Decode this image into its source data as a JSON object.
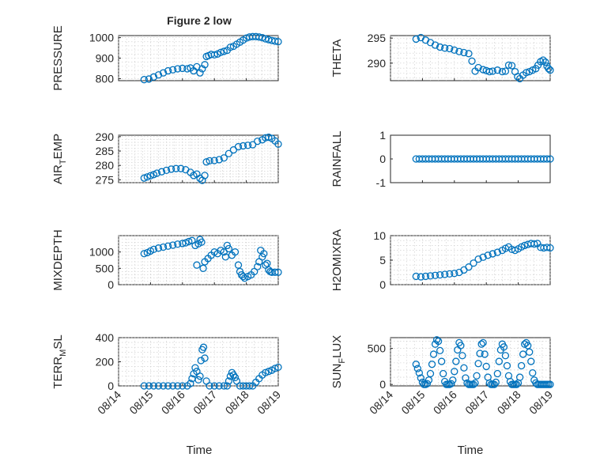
{
  "figure": {
    "title": "Figure 2 low",
    "xlabel": "Time",
    "marker_color": "#0072BD"
  },
  "chart_data": [
    {
      "type": "scatter",
      "title": "Figure 2 low",
      "ylabel": "PRESSURE",
      "xlim": [
        "08/14",
        "08/19"
      ],
      "ylim": [
        790,
        1010
      ],
      "yticks": [
        800,
        900,
        1000
      ],
      "xticks": [
        "08/14",
        "08/15",
        "08/16",
        "08/17",
        "08/18",
        "08/19"
      ],
      "grid": true,
      "x": [
        0.8,
        0.95,
        1.1,
        1.25,
        1.4,
        1.55,
        1.7,
        1.85,
        2.0,
        2.15,
        2.25,
        2.35,
        2.45,
        2.55,
        2.62,
        2.7,
        2.75,
        2.82,
        2.9,
        3.0,
        3.1,
        3.2,
        3.3,
        3.4,
        3.5,
        3.6,
        3.7,
        3.8,
        3.9,
        4.0,
        4.1,
        4.2,
        4.3,
        4.4,
        4.5,
        4.6,
        4.7,
        4.8,
        4.9,
        5.0
      ],
      "y": [
        795,
        798,
        808,
        818,
        828,
        838,
        843,
        848,
        850,
        848,
        852,
        838,
        858,
        828,
        848,
        868,
        908,
        912,
        918,
        916,
        920,
        928,
        933,
        938,
        953,
        958,
        968,
        978,
        988,
        998,
        1003,
        1005,
        1005,
        1003,
        1000,
        994,
        990,
        986,
        983,
        980
      ]
    },
    {
      "type": "scatter",
      "ylabel": "THETA",
      "xlim": [
        "08/14",
        "08/19"
      ],
      "ylim": [
        286.5,
        295.5
      ],
      "yticks": [
        290,
        295
      ],
      "xticks": [
        "08/14",
        "08/15",
        "08/16",
        "08/17",
        "08/18",
        "08/19"
      ],
      "grid": true,
      "x": [
        0.8,
        0.95,
        1.1,
        1.25,
        1.4,
        1.55,
        1.7,
        1.85,
        2.0,
        2.15,
        2.3,
        2.45,
        2.55,
        2.65,
        2.75,
        2.9,
        3.0,
        3.1,
        3.2,
        3.35,
        3.5,
        3.6,
        3.7,
        3.8,
        3.9,
        3.98,
        4.05,
        4.15,
        4.25,
        4.35,
        4.45,
        4.55,
        4.62,
        4.7,
        4.78,
        4.85,
        4.9,
        4.95,
        5.0
      ],
      "y": [
        294.8,
        295.1,
        294.6,
        294.1,
        293.6,
        293.2,
        293.0,
        292.9,
        292.6,
        292.3,
        292.1,
        291.9,
        290.4,
        288.4,
        289.1,
        288.7,
        288.5,
        288.3,
        288.4,
        288.6,
        288.3,
        288.4,
        289.6,
        289.5,
        288.3,
        287.3,
        286.9,
        287.6,
        288.1,
        288.3,
        288.6,
        288.9,
        289.6,
        290.3,
        290.6,
        290.2,
        289.4,
        288.9,
        288.6
      ]
    },
    {
      "type": "scatter",
      "ylabel": "AIR_TEMP",
      "xlim": [
        "08/14",
        "08/19"
      ],
      "ylim": [
        274,
        290.5
      ],
      "yticks": [
        275,
        280,
        285,
        290
      ],
      "xticks": [
        "08/14",
        "08/15",
        "08/16",
        "08/17",
        "08/18",
        "08/19"
      ],
      "grid": true,
      "x": [
        0.8,
        0.9,
        1.0,
        1.1,
        1.2,
        1.35,
        1.5,
        1.65,
        1.8,
        1.95,
        2.1,
        2.25,
        2.35,
        2.45,
        2.55,
        2.62,
        2.7,
        2.75,
        2.85,
        3.0,
        3.15,
        3.3,
        3.45,
        3.6,
        3.75,
        3.9,
        4.05,
        4.2,
        4.35,
        4.5,
        4.6,
        4.7,
        4.8,
        4.9,
        5.0
      ],
      "y": [
        275.6,
        276.0,
        276.4,
        276.8,
        277.3,
        277.8,
        278.3,
        278.7,
        278.9,
        278.9,
        278.5,
        277.6,
        276.5,
        277.0,
        275.5,
        274.8,
        276.5,
        281.2,
        281.6,
        281.7,
        282.0,
        282.6,
        284.1,
        285.4,
        286.5,
        286.8,
        287.0,
        287.2,
        288.4,
        288.9,
        289.6,
        289.8,
        289.4,
        288.5,
        287.4
      ]
    },
    {
      "type": "scatter",
      "ylabel": "RAINFALL",
      "xlim": [
        "08/14",
        "08/19"
      ],
      "ylim": [
        -1,
        1
      ],
      "yticks": [
        -1,
        0,
        1
      ],
      "xticks": [
        "08/14",
        "08/15",
        "08/16",
        "08/17",
        "08/18",
        "08/19"
      ],
      "grid": false,
      "x": [
        0.8,
        0.9,
        1.0,
        1.1,
        1.2,
        1.3,
        1.4,
        1.5,
        1.6,
        1.7,
        1.8,
        1.9,
        2.0,
        2.1,
        2.2,
        2.3,
        2.4,
        2.5,
        2.6,
        2.7,
        2.8,
        2.9,
        3.0,
        3.1,
        3.2,
        3.3,
        3.4,
        3.5,
        3.6,
        3.7,
        3.8,
        3.9,
        4.0,
        4.1,
        4.2,
        4.3,
        4.4,
        4.5,
        4.6,
        4.7,
        4.8,
        4.9,
        5.0
      ],
      "y": [
        0,
        0,
        0,
        0,
        0,
        0,
        0,
        0,
        0,
        0,
        0,
        0,
        0,
        0,
        0,
        0,
        0,
        0,
        0,
        0,
        0,
        0,
        0,
        0,
        0,
        0,
        0,
        0,
        0,
        0,
        0,
        0,
        0,
        0,
        0,
        0,
        0,
        0,
        0,
        0,
        0,
        0,
        0
      ]
    },
    {
      "type": "scatter",
      "ylabel": "MIXDEPTH",
      "xlim": [
        "08/14",
        "08/19"
      ],
      "ylim": [
        0,
        1500
      ],
      "yticks": [
        0,
        500,
        1000
      ],
      "xticks": [
        "08/14",
        "08/15",
        "08/16",
        "08/17",
        "08/18",
        "08/19"
      ],
      "grid": true,
      "x": [
        0.8,
        0.9,
        1.0,
        1.1,
        1.25,
        1.4,
        1.55,
        1.7,
        1.85,
        2.0,
        2.1,
        2.2,
        2.3,
        2.4,
        2.45,
        2.5,
        2.55,
        2.6,
        2.65,
        2.7,
        2.8,
        2.9,
        3.0,
        3.1,
        3.2,
        3.3,
        3.35,
        3.4,
        3.45,
        3.55,
        3.65,
        3.75,
        3.8,
        3.85,
        3.9,
        3.95,
        4.05,
        4.15,
        4.25,
        4.35,
        4.4,
        4.45,
        4.5,
        4.55,
        4.6,
        4.65,
        4.7,
        4.75,
        4.8,
        4.9,
        5.0
      ],
      "y": [
        950,
        980,
        1030,
        1080,
        1120,
        1150,
        1180,
        1210,
        1240,
        1260,
        1280,
        1320,
        1350,
        1200,
        600,
        1250,
        1380,
        1300,
        500,
        700,
        800,
        900,
        1000,
        950,
        1050,
        1000,
        850,
        1200,
        1100,
        900,
        1000,
        600,
        400,
        300,
        250,
        200,
        250,
        300,
        400,
        550,
        700,
        1050,
        850,
        950,
        600,
        650,
        450,
        400,
        380,
        380,
        380
      ]
    },
    {
      "type": "scatter",
      "ylabel": "H2OMIXRA",
      "xlim": [
        "08/14",
        "08/19"
      ],
      "ylim": [
        0,
        10
      ],
      "yticks": [
        0,
        5,
        10
      ],
      "xticks": [
        "08/14",
        "08/15",
        "08/16",
        "08/17",
        "08/18",
        "08/19"
      ],
      "grid": true,
      "x": [
        0.8,
        0.95,
        1.1,
        1.25,
        1.4,
        1.55,
        1.7,
        1.85,
        2.0,
        2.15,
        2.3,
        2.45,
        2.6,
        2.75,
        2.9,
        3.05,
        3.2,
        3.35,
        3.5,
        3.6,
        3.7,
        3.8,
        3.9,
        4.0,
        4.1,
        4.2,
        4.3,
        4.4,
        4.5,
        4.6,
        4.7,
        4.8,
        4.9,
        5.0
      ],
      "y": [
        1.7,
        1.6,
        1.7,
        1.8,
        1.9,
        2.0,
        2.1,
        2.2,
        2.3,
        2.5,
        3.0,
        3.6,
        4.4,
        5.2,
        5.6,
        6.0,
        6.3,
        6.6,
        7.0,
        7.4,
        7.7,
        7.2,
        7.0,
        7.3,
        7.7,
        8.0,
        8.2,
        8.4,
        8.3,
        8.4,
        7.6,
        7.5,
        7.6,
        7.5
      ]
    },
    {
      "type": "scatter",
      "ylabel": "TERR_MSL",
      "xlim": [
        "08/14",
        "08/19"
      ],
      "ylim": [
        0,
        400
      ],
      "yticks": [
        0,
        200,
        400
      ],
      "xticks": [
        "08/14",
        "08/15",
        "08/16",
        "08/17",
        "08/18",
        "08/19"
      ],
      "grid": true,
      "x": [
        0.8,
        0.95,
        1.1,
        1.25,
        1.4,
        1.55,
        1.7,
        1.85,
        2.0,
        2.15,
        2.25,
        2.3,
        2.35,
        2.4,
        2.45,
        2.5,
        2.55,
        2.58,
        2.62,
        2.66,
        2.7,
        2.75,
        2.85,
        3.0,
        3.15,
        3.3,
        3.4,
        3.45,
        3.5,
        3.55,
        3.6,
        3.65,
        3.7,
        3.8,
        3.9,
        4.0,
        4.1,
        4.2,
        4.3,
        4.4,
        4.5,
        4.6,
        4.7,
        4.8,
        4.9,
        5.0
      ],
      "y": [
        0,
        0,
        0,
        0,
        0,
        0,
        0,
        0,
        0,
        0,
        20,
        60,
        100,
        150,
        120,
        50,
        80,
        210,
        300,
        320,
        230,
        40,
        0,
        0,
        0,
        0,
        0,
        40,
        80,
        110,
        90,
        70,
        40,
        0,
        0,
        0,
        0,
        0,
        30,
        60,
        90,
        110,
        120,
        130,
        145,
        155
      ]
    },
    {
      "type": "scatter",
      "ylabel": "SUN_FLUX",
      "xlim": [
        "08/14",
        "08/19"
      ],
      "ylim": [
        -20,
        650
      ],
      "yticks": [
        0,
        500
      ],
      "xticks": [
        "08/14",
        "08/15",
        "08/16",
        "08/17",
        "08/18",
        "08/19"
      ],
      "grid": true,
      "x": [
        0.8,
        0.85,
        0.9,
        0.95,
        1.0,
        1.05,
        1.1,
        1.15,
        1.2,
        1.25,
        1.3,
        1.35,
        1.4,
        1.45,
        1.5,
        1.55,
        1.6,
        1.65,
        1.7,
        1.75,
        1.8,
        1.85,
        1.9,
        1.95,
        2.0,
        2.05,
        2.1,
        2.15,
        2.2,
        2.25,
        2.3,
        2.35,
        2.4,
        2.45,
        2.5,
        2.55,
        2.6,
        2.65,
        2.7,
        2.75,
        2.8,
        2.85,
        2.9,
        2.95,
        3.0,
        3.05,
        3.1,
        3.15,
        3.2,
        3.25,
        3.3,
        3.35,
        3.4,
        3.45,
        3.5,
        3.55,
        3.6,
        3.65,
        3.7,
        3.75,
        3.8,
        3.85,
        3.9,
        3.95,
        4.0,
        4.05,
        4.1,
        4.15,
        4.2,
        4.25,
        4.3,
        4.35,
        4.4,
        4.45,
        4.5,
        4.55,
        4.6,
        4.65,
        4.7,
        4.75,
        4.8,
        4.85,
        4.9,
        4.95,
        5.0
      ],
      "y": [
        280,
        220,
        160,
        90,
        30,
        0,
        0,
        10,
        60,
        150,
        280,
        420,
        560,
        620,
        600,
        470,
        320,
        150,
        40,
        0,
        0,
        0,
        10,
        60,
        180,
        320,
        480,
        580,
        540,
        400,
        230,
        90,
        20,
        0,
        0,
        0,
        0,
        20,
        120,
        290,
        430,
        560,
        580,
        420,
        250,
        100,
        20,
        0,
        0,
        0,
        30,
        150,
        320,
        480,
        560,
        520,
        400,
        260,
        120,
        40,
        0,
        0,
        0,
        0,
        20,
        100,
        260,
        420,
        560,
        580,
        540,
        450,
        320,
        160,
        60,
        20,
        0,
        0,
        0,
        0,
        0,
        0,
        0,
        0,
        0
      ]
    }
  ]
}
